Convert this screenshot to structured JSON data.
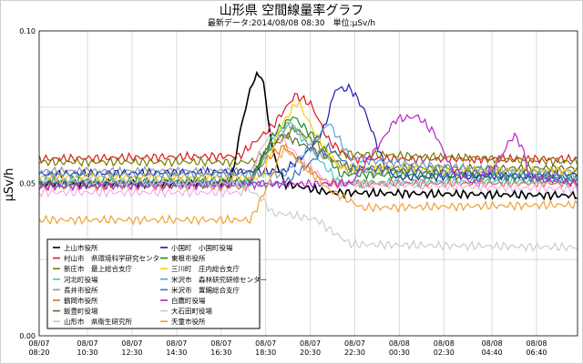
{
  "chart_data": {
    "type": "line",
    "title": "山形県 空間線量率グラフ",
    "subtitle": "最新データ:2014/08/08 08:30　単位:μSv/h",
    "xlabel": "",
    "ylabel": "μSv/h",
    "ylim": [
      0,
      0.1
    ],
    "yticks": [
      "0.00",
      "0.05",
      "0.10"
    ],
    "grid": true,
    "legend_position": "bottom-left inside plot",
    "x_tick_labels": [
      [
        "08/07",
        "08:20"
      ],
      [
        "08/07",
        "10:30"
      ],
      [
        "08/07",
        "12:30"
      ],
      [
        "08/07",
        "14:30"
      ],
      [
        "08/07",
        "16:30"
      ],
      [
        "08/07",
        "18:30"
      ],
      [
        "08/07",
        "20:30"
      ],
      [
        "08/07",
        "22:30"
      ],
      [
        "08/08",
        "00:30"
      ],
      [
        "08/08",
        "02:30"
      ],
      [
        "08/08",
        "04:40"
      ],
      [
        "08/08",
        "06:40"
      ]
    ],
    "x_hours": [
      0,
      2.17,
      4.17,
      6.17,
      8.17,
      10.17,
      12.17,
      14.17,
      16.17,
      18.17,
      20.33,
      22.33
    ],
    "x_range_hours": [
      0,
      24.17
    ],
    "series": [
      {
        "name": "上山市役所",
        "color": "#000000",
        "base": 0.047,
        "points": [
          [
            0,
            0.05
          ],
          [
            8.6,
            0.05
          ],
          [
            9.1,
            0.07
          ],
          [
            9.6,
            0.084
          ],
          [
            10.0,
            0.086
          ],
          [
            10.5,
            0.06
          ],
          [
            11,
            0.05
          ],
          [
            13,
            0.047
          ],
          [
            24.17,
            0.046
          ]
        ]
      },
      {
        "name": "村山市　県環境科学研究センター",
        "color": "#d91a1a",
        "base": 0.058,
        "points": [
          [
            0,
            0.058
          ],
          [
            9,
            0.059
          ],
          [
            10.5,
            0.069
          ],
          [
            11.5,
            0.079
          ],
          [
            12.2,
            0.076
          ],
          [
            13,
            0.064
          ],
          [
            14,
            0.058
          ],
          [
            24.17,
            0.058
          ]
        ]
      },
      {
        "name": "新庄市　最上総合支庁",
        "color": "#7a7a00",
        "base": 0.057,
        "points": [
          [
            0,
            0.057
          ],
          [
            9.5,
            0.057
          ],
          [
            10.5,
            0.062
          ],
          [
            11.5,
            0.068
          ],
          [
            13,
            0.06
          ],
          [
            24.17,
            0.057
          ]
        ]
      },
      {
        "name": "河北町役場",
        "color": "#33cccc",
        "base": 0.05,
        "points": [
          [
            0,
            0.05
          ],
          [
            9.5,
            0.05
          ],
          [
            10.5,
            0.064
          ],
          [
            11.3,
            0.07
          ],
          [
            12.3,
            0.06
          ],
          [
            13.5,
            0.05
          ],
          [
            24.17,
            0.051
          ]
        ]
      },
      {
        "name": "長井市役所",
        "color": "#999999",
        "base": 0.054,
        "points": [
          [
            0,
            0.054
          ],
          [
            9.5,
            0.054
          ],
          [
            10.5,
            0.062
          ],
          [
            11.2,
            0.07
          ],
          [
            12.5,
            0.06
          ],
          [
            14,
            0.054
          ],
          [
            24.17,
            0.054
          ]
        ]
      },
      {
        "name": "鶴岡市役所",
        "color": "#e07040",
        "base": 0.049,
        "points": [
          [
            0,
            0.049
          ],
          [
            9.3,
            0.049
          ],
          [
            10.2,
            0.058
          ],
          [
            11,
            0.062
          ],
          [
            12,
            0.055
          ],
          [
            13,
            0.05
          ],
          [
            24.17,
            0.05
          ]
        ]
      },
      {
        "name": "飯豊町役場",
        "color": "#556b2f",
        "base": 0.05,
        "points": [
          [
            0,
            0.05
          ],
          [
            9.5,
            0.051
          ],
          [
            10.3,
            0.062
          ],
          [
            11,
            0.066
          ],
          [
            12,
            0.062
          ],
          [
            14,
            0.055
          ],
          [
            24.17,
            0.055
          ]
        ]
      },
      {
        "name": "山形市　県衛生研究所",
        "color": "#f0b0e8",
        "base": 0.047,
        "points": [
          [
            0,
            0.047
          ],
          [
            9.2,
            0.047
          ],
          [
            10,
            0.062
          ],
          [
            10.5,
            0.067
          ],
          [
            11.5,
            0.06
          ],
          [
            13,
            0.05
          ],
          [
            24.17,
            0.048
          ]
        ]
      },
      {
        "name": "小国町　小国町役場",
        "color": "#1a1aaa",
        "base": 0.052,
        "points": [
          [
            0,
            0.053
          ],
          [
            11,
            0.054
          ],
          [
            12,
            0.06
          ],
          [
            12.8,
            0.068
          ],
          [
            13.3,
            0.081
          ],
          [
            14,
            0.081
          ],
          [
            14.6,
            0.074
          ],
          [
            15.5,
            0.056
          ],
          [
            16,
            0.052
          ],
          [
            24.17,
            0.053
          ]
        ]
      },
      {
        "name": "東根市役所",
        "color": "#1b8a1b",
        "base": 0.051,
        "points": [
          [
            0,
            0.051
          ],
          [
            9.5,
            0.051
          ],
          [
            10.5,
            0.066
          ],
          [
            11.4,
            0.072
          ],
          [
            12.5,
            0.064
          ],
          [
            13.5,
            0.053
          ],
          [
            24.17,
            0.052
          ]
        ]
      },
      {
        "name": "三川町　庄内総合支庁",
        "color": "#ffcc00",
        "base": 0.052,
        "points": [
          [
            0,
            0.052
          ],
          [
            10,
            0.052
          ],
          [
            10.8,
            0.068
          ],
          [
            11.6,
            0.077
          ],
          [
            12.5,
            0.065
          ],
          [
            13.5,
            0.055
          ],
          [
            24.17,
            0.054
          ]
        ]
      },
      {
        "name": "米沢市　森林研究研修センター",
        "color": "#60a0d0",
        "base": 0.053,
        "points": [
          [
            0,
            0.053
          ],
          [
            11,
            0.053
          ],
          [
            12.2,
            0.062
          ],
          [
            13,
            0.07
          ],
          [
            14,
            0.058
          ],
          [
            24.17,
            0.052
          ]
        ]
      },
      {
        "name": "米沢市　置賜総合支庁",
        "color": "#3a6ec0",
        "base": 0.05,
        "points": [
          [
            0,
            0.05
          ],
          [
            11,
            0.05
          ],
          [
            12.2,
            0.057
          ],
          [
            13,
            0.062
          ],
          [
            14,
            0.055
          ],
          [
            24.17,
            0.051
          ]
        ]
      },
      {
        "name": "白鷹町役場",
        "color": "#bb22cc",
        "base": 0.049,
        "points": [
          [
            0,
            0.049
          ],
          [
            14,
            0.05
          ],
          [
            15.2,
            0.062
          ],
          [
            16,
            0.071
          ],
          [
            17,
            0.072
          ],
          [
            17.8,
            0.066
          ],
          [
            18.5,
            0.055
          ],
          [
            19.5,
            0.05
          ],
          [
            20.5,
            0.056
          ],
          [
            21.3,
            0.066
          ],
          [
            21.7,
            0.062
          ],
          [
            22,
            0.052
          ],
          [
            24.17,
            0.05
          ]
        ]
      },
      {
        "name": "大石田町役場",
        "color": "#cccccc",
        "base": 0.03,
        "points": [
          [
            0,
            0.051
          ],
          [
            9,
            0.05
          ],
          [
            10,
            0.045
          ],
          [
            10.5,
            0.04
          ],
          [
            11,
            0.04
          ],
          [
            12.5,
            0.038
          ],
          [
            13,
            0.035
          ],
          [
            14,
            0.03
          ],
          [
            24.17,
            0.029
          ]
        ]
      },
      {
        "name": "天童市役所",
        "color": "#f0a030",
        "base": 0.038,
        "points": [
          [
            0,
            0.038
          ],
          [
            9.5,
            0.038
          ],
          [
            10.3,
            0.05
          ],
          [
            11,
            0.062
          ],
          [
            12,
            0.055
          ],
          [
            13,
            0.048
          ],
          [
            14.5,
            0.042
          ],
          [
            24.17,
            0.043
          ]
        ]
      }
    ]
  }
}
